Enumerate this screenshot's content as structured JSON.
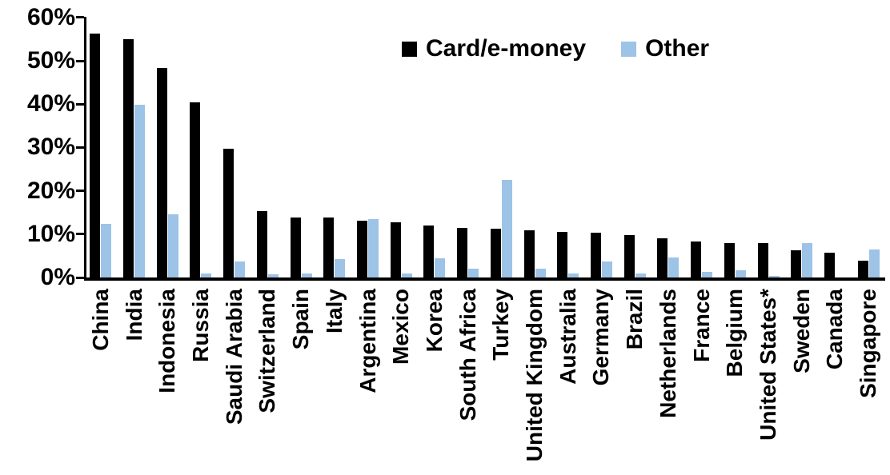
{
  "chart_data": {
    "type": "bar",
    "title": "",
    "xlabel": "",
    "ylabel": "",
    "ylim": [
      0,
      60
    ],
    "ytick_step": 10,
    "ytick_labels": [
      "0%",
      "10%",
      "20%",
      "30%",
      "40%",
      "50%",
      "60%"
    ],
    "grid": false,
    "legend_position": "top-center",
    "categories": [
      "China",
      "India",
      "Indonesia",
      "Russia",
      "Saudi Arabia",
      "Switzerland",
      "Spain",
      "Italy",
      "Argentina",
      "Mexico",
      "Korea",
      "South Africa",
      "Turkey",
      "United Kingdom",
      "Australia",
      "Germany",
      "Brazil",
      "Netherlands",
      "France",
      "Belgium",
      "United States*",
      "Sweden",
      "Canada",
      "Singapore"
    ],
    "series": [
      {
        "name": "Card/e-money",
        "color": "#000000",
        "values": [
          56.3,
          55.1,
          48.4,
          40.4,
          29.7,
          15.4,
          13.9,
          13.8,
          13.1,
          12.7,
          12.0,
          11.4,
          11.2,
          10.8,
          10.6,
          10.4,
          9.7,
          9.0,
          8.3,
          8.0,
          7.9,
          6.3,
          5.7,
          3.8
        ]
      },
      {
        "name": "Other",
        "color": "#9DC3E6",
        "values": [
          12.3,
          39.8,
          14.5,
          0.9,
          3.6,
          0.7,
          0.9,
          4.3,
          13.5,
          1.0,
          4.4,
          2.1,
          22.5,
          2.0,
          1.0,
          3.7,
          1.0,
          4.6,
          1.3,
          1.7,
          0.3,
          8.0,
          0,
          6.4
        ]
      }
    ]
  }
}
